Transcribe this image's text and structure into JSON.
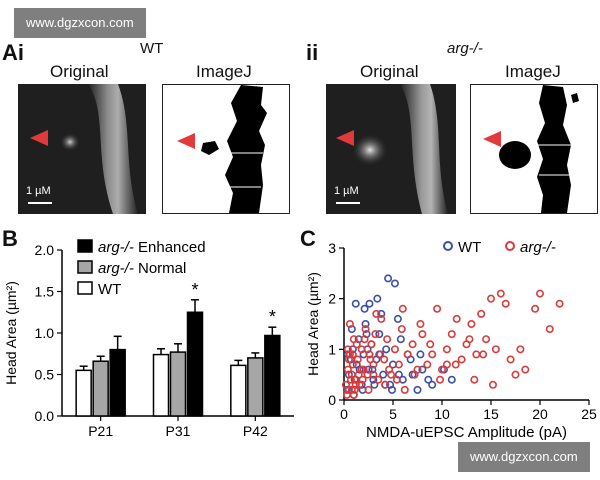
{
  "watermark_top": "www.dgzxcon.com",
  "watermark_bottom": "www.dgzxcon.com",
  "panel_a": {
    "letter": "Ai",
    "wt_title": "WT",
    "original_label": "Original",
    "imagej_label": "ImageJ",
    "scale_label": "1 µM"
  },
  "panel_a2": {
    "letter": "ii",
    "title": "arg-/-",
    "original_label": "Original",
    "imagej_label": "ImageJ",
    "scale_label": "1 µM"
  },
  "panel_b": {
    "letter": "B"
  },
  "panel_c": {
    "letter": "C"
  },
  "chart_data": [
    {
      "type": "bar",
      "categories": [
        "P21",
        "P31",
        "P42"
      ],
      "ylabel": "Head Area (µm²)",
      "ylim": [
        0,
        2.0
      ],
      "yticks": [
        "0.0",
        "0.5",
        "1.0",
        "1.5",
        "2.0"
      ],
      "legend": [
        "arg-/- Enhanced",
        "arg-/- Normal",
        "WT"
      ],
      "series": [
        {
          "name": "WT",
          "color": "#ffffff",
          "values": [
            0.55,
            0.74,
            0.61
          ],
          "errors": [
            0.05,
            0.07,
            0.06
          ]
        },
        {
          "name": "arg-/- Normal",
          "color": "#a6a6a6",
          "values": [
            0.66,
            0.77,
            0.7
          ],
          "errors": [
            0.06,
            0.1,
            0.06
          ]
        },
        {
          "name": "arg-/- Enhanced",
          "color": "#000000",
          "values": [
            0.8,
            1.25,
            0.97
          ],
          "errors": [
            0.16,
            0.15,
            0.1
          ]
        }
      ],
      "significance": [
        "",
        "*",
        "*"
      ]
    },
    {
      "type": "scatter",
      "xlabel": "NMDA-uEPSC Amplitude (pA)",
      "ylabel": "Head Area (µm²)",
      "xlim": [
        0,
        25
      ],
      "ylim": [
        0,
        3
      ],
      "xticks": [
        "0",
        "5",
        "10",
        "15",
        "20",
        "25"
      ],
      "yticks": [
        "0",
        "1",
        "2",
        "3"
      ],
      "legend": [
        "WT",
        "arg-/-"
      ],
      "series": [
        {
          "name": "WT",
          "color": "#3b4fa8",
          "x": [
            0.3,
            0.5,
            0.7,
            0.9,
            1.1,
            1.3,
            1.5,
            1.8,
            2.0,
            2.2,
            2.5,
            2.8,
            3.0,
            3.3,
            3.6,
            4.0,
            4.3,
            4.7,
            5.0,
            5.5,
            6.0,
            6.5,
            7.0,
            7.5,
            8.0,
            9.0,
            11.0,
            2.1,
            2.6,
            3.4,
            4.5,
            5.2,
            1.0,
            1.6,
            0.8,
            3.8,
            5.8,
            6.8,
            4.9,
            3.1,
            2.4,
            1.2,
            0.4,
            7.8,
            10.2,
            8.6,
            5.6,
            4.2,
            2.9,
            1.9,
            3.6,
            2.3
          ],
          "y": [
            0.2,
            0.5,
            0.8,
            1.0,
            0.4,
            0.7,
            1.2,
            0.3,
            0.9,
            1.5,
            0.6,
            1.1,
            0.4,
            0.8,
            1.3,
            0.5,
            1.0,
            0.3,
            0.7,
            1.6,
            0.4,
            0.9,
            0.5,
            0.2,
            0.6,
            0.3,
            0.4,
            1.8,
            1.9,
            2.0,
            2.4,
            2.3,
            0.1,
            0.6,
            1.4,
            1.7,
            1.2,
            0.8,
            0.2,
            0.3,
            1.0,
            1.9,
            0.9,
            0.9,
            0.6,
            0.4,
            0.5,
            0.3,
            0.6,
            0.2,
            0.9,
            1.3
          ]
        },
        {
          "name": "arg-/-",
          "color": "#d93a3a",
          "x": [
            0.2,
            0.4,
            0.6,
            0.8,
            1.0,
            1.2,
            1.4,
            1.6,
            1.8,
            2.0,
            2.2,
            2.4,
            2.6,
            2.8,
            3.0,
            3.2,
            3.5,
            3.8,
            4.1,
            4.4,
            4.8,
            5.2,
            5.6,
            6.0,
            6.5,
            7.0,
            7.5,
            8.0,
            8.5,
            9.0,
            9.5,
            10.0,
            10.5,
            11.0,
            11.5,
            12.0,
            12.5,
            13.0,
            13.5,
            14.0,
            14.5,
            15.0,
            15.5,
            16.0,
            17.0,
            18.0,
            18.5,
            20.0,
            21.0,
            22.0,
            0.3,
            0.5,
            0.7,
            0.9,
            1.1,
            1.3,
            0.6,
            1.0,
            1.5,
            2.5,
            3.3,
            4.2,
            5.4,
            6.2,
            7.2,
            8.8,
            9.8,
            11.4,
            12.8,
            14.2,
            15.2,
            16.5,
            17.5,
            1.8,
            2.7,
            0.4,
            0.8,
            1.9,
            3.7,
            4.6,
            5.9,
            7.8,
            10.5,
            13.3,
            19.5,
            0.5,
            1.2,
            2.1,
            3.0,
            0.9
          ],
          "y": [
            0.3,
            0.6,
            0.9,
            0.5,
            1.2,
            0.4,
            0.8,
            0.3,
            1.0,
            0.6,
            1.4,
            0.5,
            0.9,
            1.1,
            0.7,
            1.3,
            0.4,
            1.6,
            0.8,
            1.2,
            0.5,
            1.0,
            0.7,
            1.8,
            0.9,
            1.1,
            0.6,
            1.3,
            0.7,
            0.9,
            1.8,
            0.6,
            1.0,
            1.3,
            1.6,
            0.8,
            1.1,
            1.5,
            0.9,
            1.7,
            1.2,
            2.0,
            1.0,
            2.1,
            0.8,
            1.0,
            0.6,
            2.1,
            1.4,
            1.9,
            0.1,
            0.2,
            0.4,
            0.7,
            0.2,
            1.1,
            1.5,
            0.1,
            0.5,
            0.2,
            1.7,
            0.3,
            0.4,
            0.2,
            0.5,
            1.1,
            0.4,
            0.7,
            1.2,
            0.9,
            0.3,
            1.9,
            0.5,
            0.6,
            0.8,
            1.0,
            0.2,
            0.4,
            0.9,
            0.6,
            1.4,
            1.5,
            0.7,
            0.4,
            1.8,
            0.8,
            0.3,
            1.2,
            0.5,
            0.9
          ]
        }
      ]
    }
  ]
}
